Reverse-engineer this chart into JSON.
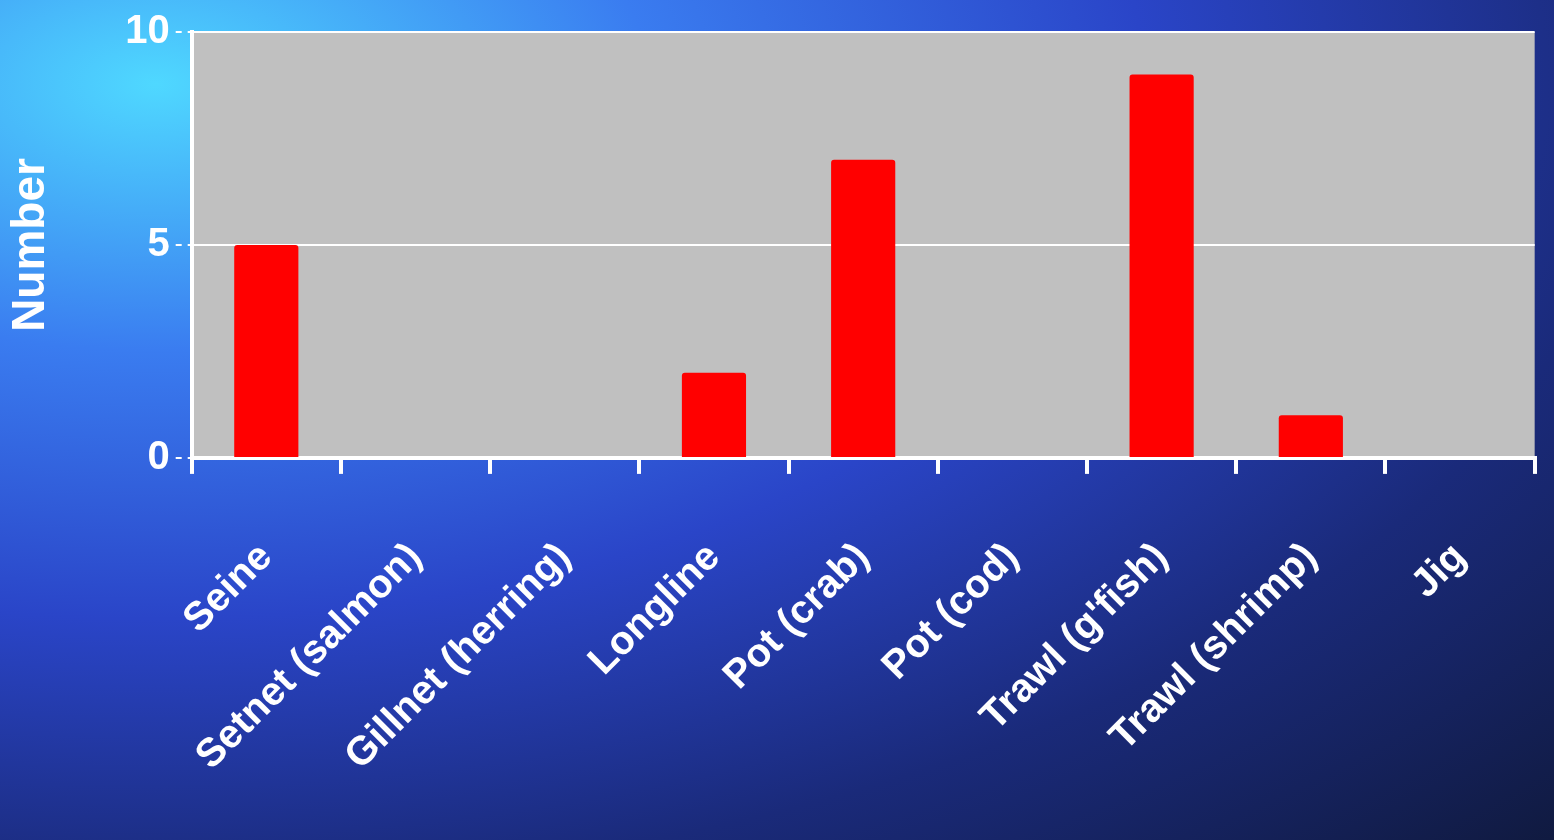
{
  "chart_data": {
    "type": "bar",
    "ylabel": "Number",
    "categories": [
      "Seine",
      "Setnet (salmon)",
      "Gillnet (herring)",
      "Longline",
      "Pot (crab)",
      "Pot (cod)",
      "Trawl (g'fish)",
      "Trawl (shrimp)",
      "Jig"
    ],
    "values": [
      5,
      0,
      0,
      2,
      7,
      0,
      9,
      1,
      0
    ],
    "color": "#ff0000",
    "ylim": [
      0,
      10
    ],
    "yticks": [
      0,
      5,
      10
    ],
    "grid": "y"
  }
}
